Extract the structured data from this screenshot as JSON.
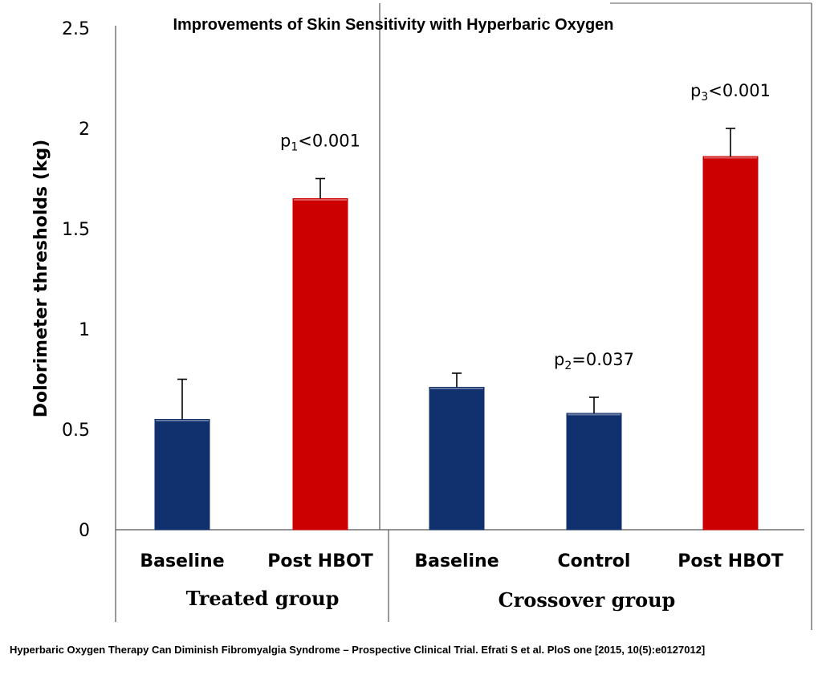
{
  "chart_data": {
    "type": "bar",
    "title": "Improvements of Skin Sensitivity with Hyperbaric Oxygen",
    "ylabel": "Dolorimeter thresholds (kg)",
    "ylim": [
      0,
      2.5
    ],
    "yticks": [
      "0",
      "0.5",
      "1",
      "1.5",
      "2",
      "2.5"
    ],
    "grid": false,
    "groups": [
      {
        "label": "Treated group",
        "categories": [
          "Baseline",
          "Post HBOT"
        ]
      },
      {
        "label": "Crossover group",
        "categories": [
          "Baseline",
          "Control",
          "Post HBOT"
        ]
      }
    ],
    "categories": [
      "Baseline",
      "Post HBOT",
      "Baseline",
      "Control",
      "Post HBOT"
    ],
    "values": [
      0.55,
      1.65,
      0.71,
      0.58,
      1.86
    ],
    "errors": [
      0.2,
      0.1,
      0.07,
      0.08,
      0.14
    ],
    "colors": [
      "#11306e",
      "#cc0000",
      "#11306e",
      "#11306e",
      "#cc0000"
    ],
    "annotations": [
      {
        "bar": 1,
        "prefix": "p",
        "sub": "1",
        "suffix": "<0.001"
      },
      {
        "bar": 3,
        "prefix": "p",
        "sub": "2",
        "suffix": "=0.037"
      },
      {
        "bar": 4,
        "prefix": "p",
        "sub": "3",
        "suffix": "<0.001"
      }
    ]
  },
  "footer": "Hyperbaric Oxygen Therapy Can Diminish Fibromyalgia Syndrome – Prospective Clinical Trial. Efrati S et al. PloS one [2015, 10(5):e0127012]"
}
